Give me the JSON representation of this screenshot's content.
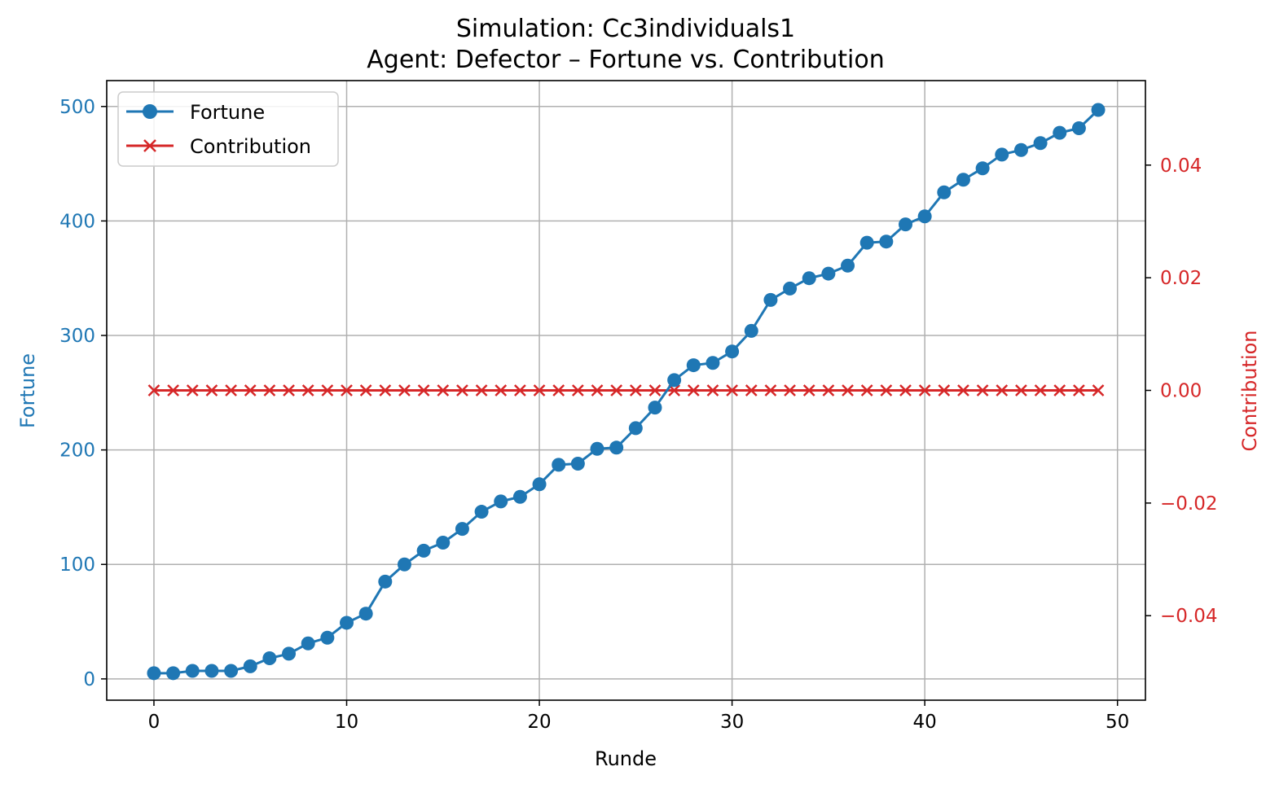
{
  "chart_data": {
    "type": "line",
    "title": "Simulation: Cc3individuals1",
    "subtitle": "Agent: Defector – Fortune vs. Contribution",
    "xlabel": "Runde",
    "ylabel_left": "Fortune",
    "ylabel_right": "Contribution",
    "xlim": [
      -2.45,
      51.45
    ],
    "ylim_left": [
      -18.6,
      522.6
    ],
    "ylim_right": [
      -0.055,
      0.055
    ],
    "x_ticks": [
      0,
      10,
      20,
      30,
      40,
      50
    ],
    "x_tick_labels": [
      "0",
      "10",
      "20",
      "30",
      "40",
      "50"
    ],
    "y_left_ticks": [
      0,
      100,
      200,
      300,
      400,
      500
    ],
    "y_left_tick_labels": [
      "0",
      "100",
      "200",
      "300",
      "400",
      "500"
    ],
    "y_right_ticks": [
      -0.04,
      -0.02,
      0.0,
      0.02,
      0.04
    ],
    "y_right_tick_labels": [
      "−0.04",
      "−0.02",
      "0.00",
      "0.02",
      "0.04"
    ],
    "grid": true,
    "legend_position": "top-left",
    "colors": {
      "fortune": "#1f77b4",
      "contribution": "#d62728",
      "grid": "#b0b0b0"
    },
    "x": [
      0,
      1,
      2,
      3,
      4,
      5,
      6,
      7,
      8,
      9,
      10,
      11,
      12,
      13,
      14,
      15,
      16,
      17,
      18,
      19,
      20,
      21,
      22,
      23,
      24,
      25,
      26,
      27,
      28,
      29,
      30,
      31,
      32,
      33,
      34,
      35,
      36,
      37,
      38,
      39,
      40,
      41,
      42,
      43,
      44,
      45,
      46,
      47,
      48,
      49
    ],
    "series": [
      {
        "name": "Fortune",
        "axis": "left",
        "marker": "circle",
        "color": "#1f77b4",
        "values": [
          5,
          5,
          7,
          7,
          7,
          11,
          18,
          22,
          31,
          36,
          49,
          57,
          85,
          100,
          112,
          119,
          131,
          146,
          155,
          159,
          170,
          187,
          188,
          201,
          202,
          219,
          237,
          261,
          274,
          276,
          286,
          304,
          331,
          341,
          350,
          354,
          361,
          381,
          382,
          397,
          404,
          425,
          436,
          446,
          458,
          462,
          468,
          477,
          481,
          497
        ]
      },
      {
        "name": "Contribution",
        "axis": "right",
        "marker": "x",
        "color": "#d62728",
        "values": [
          0,
          0,
          0,
          0,
          0,
          0,
          0,
          0,
          0,
          0,
          0,
          0,
          0,
          0,
          0,
          0,
          0,
          0,
          0,
          0,
          0,
          0,
          0,
          0,
          0,
          0,
          0,
          0,
          0,
          0,
          0,
          0,
          0,
          0,
          0,
          0,
          0,
          0,
          0,
          0,
          0,
          0,
          0,
          0,
          0,
          0,
          0,
          0,
          0,
          0
        ]
      }
    ]
  }
}
